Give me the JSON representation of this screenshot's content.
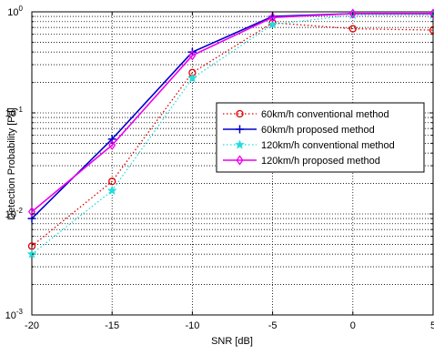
{
  "chart_data": {
    "type": "line",
    "title": "",
    "xlabel": "SNR [dB]",
    "ylabel": "Detection Probability [Pd]",
    "x": [
      -20,
      -15,
      -10,
      -5,
      0,
      5
    ],
    "xlim": [
      -20,
      5
    ],
    "ylim": [
      0.001,
      1
    ],
    "y_scale": "log",
    "grid": true,
    "legend_position": "center-right",
    "x_tick_labels": [
      "-20",
      "-15",
      "-10",
      "-5",
      "0",
      "5"
    ],
    "y_tick_labels": [
      {
        "base": "10",
        "exp": "-3",
        "value": 0.001
      },
      {
        "base": "10",
        "exp": "-2",
        "value": 0.01
      },
      {
        "base": "10",
        "exp": "-1",
        "value": 0.1
      },
      {
        "base": "10",
        "exp": "0",
        "value": 1
      }
    ],
    "series": [
      {
        "name": "60km/h conventional method",
        "values": [
          0.0048,
          0.021,
          0.25,
          0.78,
          0.68,
          0.66
        ],
        "color": "#dd0000",
        "line_style": "dotted",
        "marker": "circle"
      },
      {
        "name": "60km/h proposed method",
        "values": [
          0.009,
          0.055,
          0.4,
          0.9,
          0.96,
          0.96
        ],
        "color": "#0000cc",
        "line_style": "solid",
        "marker": "plus"
      },
      {
        "name": "120km/h conventional method",
        "values": [
          0.004,
          0.017,
          0.22,
          0.75,
          0.93,
          0.93
        ],
        "color": "#22dddd",
        "line_style": "dotted",
        "marker": "star"
      },
      {
        "name": "120km/h proposed method",
        "values": [
          0.0105,
          0.048,
          0.37,
          0.88,
          0.96,
          0.96
        ],
        "color": "#ee00ee",
        "line_style": "solid",
        "marker": "diamond"
      }
    ]
  }
}
